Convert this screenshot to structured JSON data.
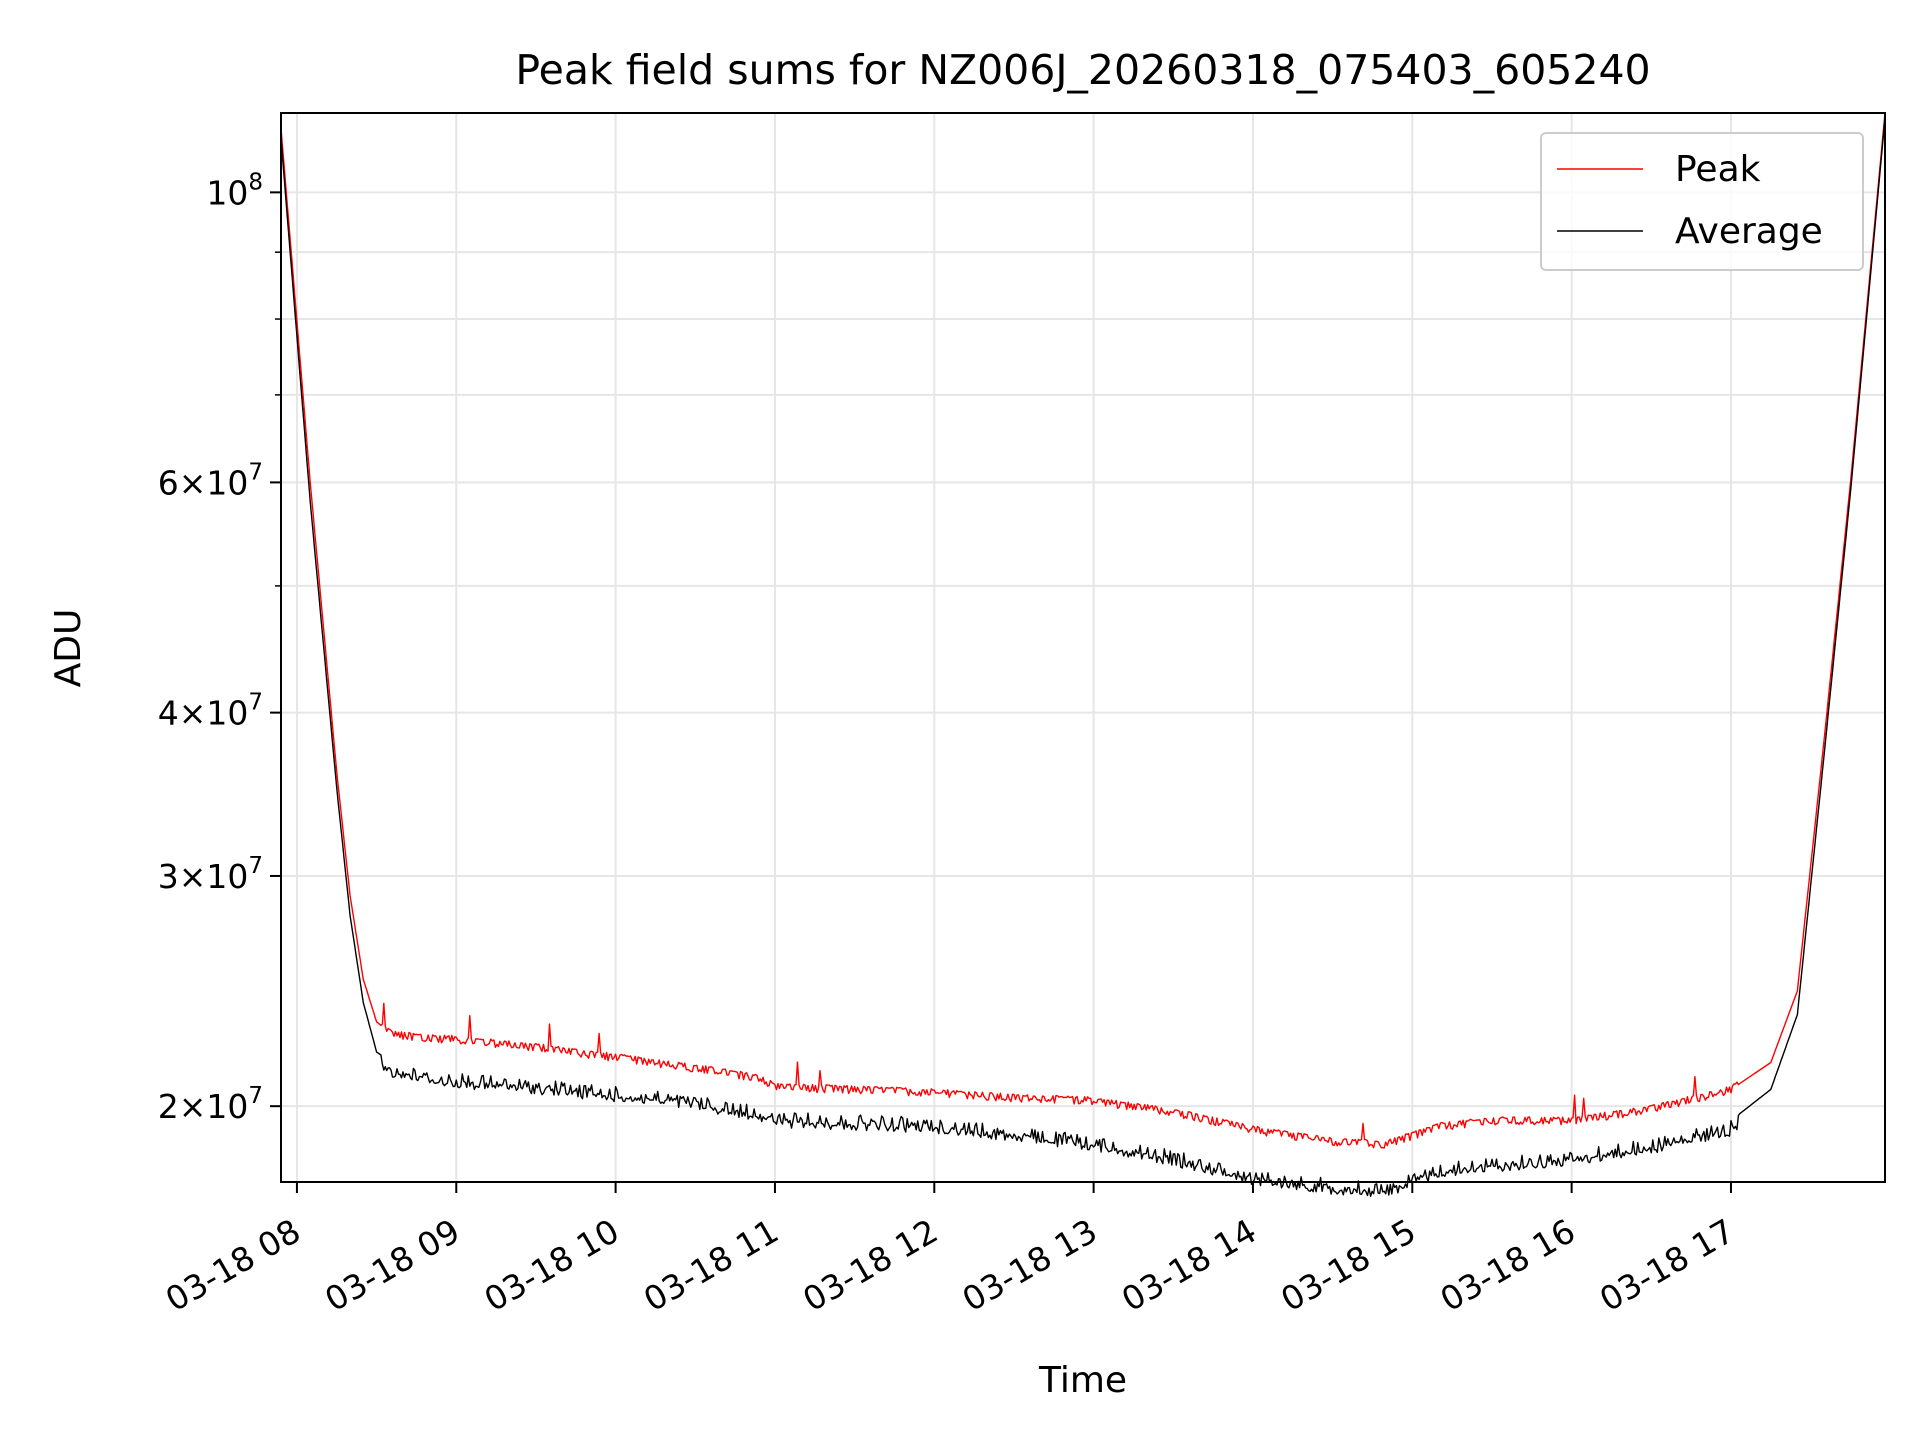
{
  "chart_data": {
    "type": "line",
    "title": "Peak field sums for NZ006J_20260318_075403_605240",
    "xlabel": "Time",
    "ylabel": "ADU",
    "y_scale": "log",
    "xlim": [
      "2026-03-18 07:54",
      "2026-03-18 17:58"
    ],
    "ylim": [
      17500000,
      115000000
    ],
    "grid": true,
    "legend_position": "upper-right",
    "x_ticks": [
      {
        "t": "2026-03-18 08:00",
        "label": "03-18 08"
      },
      {
        "t": "2026-03-18 09:00",
        "label": "03-18 09"
      },
      {
        "t": "2026-03-18 10:00",
        "label": "03-18 10"
      },
      {
        "t": "2026-03-18 11:00",
        "label": "03-18 11"
      },
      {
        "t": "2026-03-18 12:00",
        "label": "03-18 12"
      },
      {
        "t": "2026-03-18 13:00",
        "label": "03-18 13"
      },
      {
        "t": "2026-03-18 14:00",
        "label": "03-18 14"
      },
      {
        "t": "2026-03-18 15:00",
        "label": "03-18 15"
      },
      {
        "t": "2026-03-18 16:00",
        "label": "03-18 16"
      },
      {
        "t": "2026-03-18 17:00",
        "label": "03-18 17"
      }
    ],
    "y_ticks": [
      {
        "value": 20000000,
        "mantissa": "2",
        "exponent": "7"
      },
      {
        "value": 30000000,
        "mantissa": "3",
        "exponent": "7"
      },
      {
        "value": 40000000,
        "mantissa": "4",
        "exponent": "7"
      },
      {
        "value": 60000000,
        "mantissa": "6",
        "exponent": "7"
      },
      {
        "value": 100000000,
        "mantissa": "",
        "exponent": "8"
      }
    ],
    "y_minor_ticks": [
      50000000,
      70000000,
      80000000,
      90000000
    ],
    "series": [
      {
        "name": "Peak",
        "color": "#ff0000",
        "x": [
          "2026-03-18 07:54",
          "2026-03-18 08:05",
          "2026-03-18 08:15",
          "2026-03-18 08:20",
          "2026-03-18 08:25",
          "2026-03-18 08:30",
          "2026-03-18 08:36",
          "2026-03-18 08:45",
          "2026-03-18 09:00",
          "2026-03-18 09:30",
          "2026-03-18 10:00",
          "2026-03-18 10:30",
          "2026-03-18 10:55",
          "2026-03-18 11:00",
          "2026-03-18 11:30",
          "2026-03-18 12:00",
          "2026-03-18 12:30",
          "2026-03-18 13:00",
          "2026-03-18 13:30",
          "2026-03-18 14:00",
          "2026-03-18 14:30",
          "2026-03-18 14:50",
          "2026-03-18 15:10",
          "2026-03-18 15:30",
          "2026-03-18 16:00",
          "2026-03-18 16:30",
          "2026-03-18 17:00",
          "2026-03-18 17:15",
          "2026-03-18 17:25",
          "2026-03-18 17:35",
          "2026-03-18 17:45",
          "2026-03-18 17:58"
        ],
        "y": [
          112000000,
          60000000,
          36000000,
          29000000,
          25000000,
          23200000,
          22700000,
          22600000,
          22500000,
          22200000,
          21800000,
          21400000,
          21000000,
          20700000,
          20600000,
          20500000,
          20300000,
          20200000,
          19800000,
          19200000,
          18800000,
          18700000,
          19300000,
          19500000,
          19500000,
          19900000,
          20600000,
          21600000,
          24500000,
          38000000,
          60000000,
          115000000
        ]
      },
      {
        "name": "Average",
        "color": "#000000",
        "x": [
          "2026-03-18 07:54",
          "2026-03-18 08:05",
          "2026-03-18 08:15",
          "2026-03-18 08:20",
          "2026-03-18 08:25",
          "2026-03-18 08:30",
          "2026-03-18 08:36",
          "2026-03-18 08:45",
          "2026-03-18 09:00",
          "2026-03-18 09:30",
          "2026-03-18 10:00",
          "2026-03-18 10:30",
          "2026-03-18 10:55",
          "2026-03-18 11:00",
          "2026-03-18 11:30",
          "2026-03-18 12:00",
          "2026-03-18 12:30",
          "2026-03-18 13:00",
          "2026-03-18 13:30",
          "2026-03-18 14:00",
          "2026-03-18 14:30",
          "2026-03-18 14:50",
          "2026-03-18 15:10",
          "2026-03-18 15:30",
          "2026-03-18 16:00",
          "2026-03-18 16:30",
          "2026-03-18 17:00",
          "2026-03-18 17:15",
          "2026-03-18 17:25",
          "2026-03-18 17:35",
          "2026-03-18 17:45",
          "2026-03-18 17:58"
        ],
        "y": [
          110000000,
          58000000,
          35000000,
          28000000,
          24000000,
          22000000,
          21600000,
          21400000,
          21200000,
          21000000,
          20700000,
          20400000,
          20000000,
          19800000,
          19700000,
          19600000,
          19300000,
          19000000,
          18500000,
          17900000,
          17600000,
          17500000,
          18100000,
          18300000,
          18500000,
          18900000,
          19500000,
          20600000,
          23500000,
          37000000,
          59000000,
          114000000
        ]
      }
    ]
  }
}
